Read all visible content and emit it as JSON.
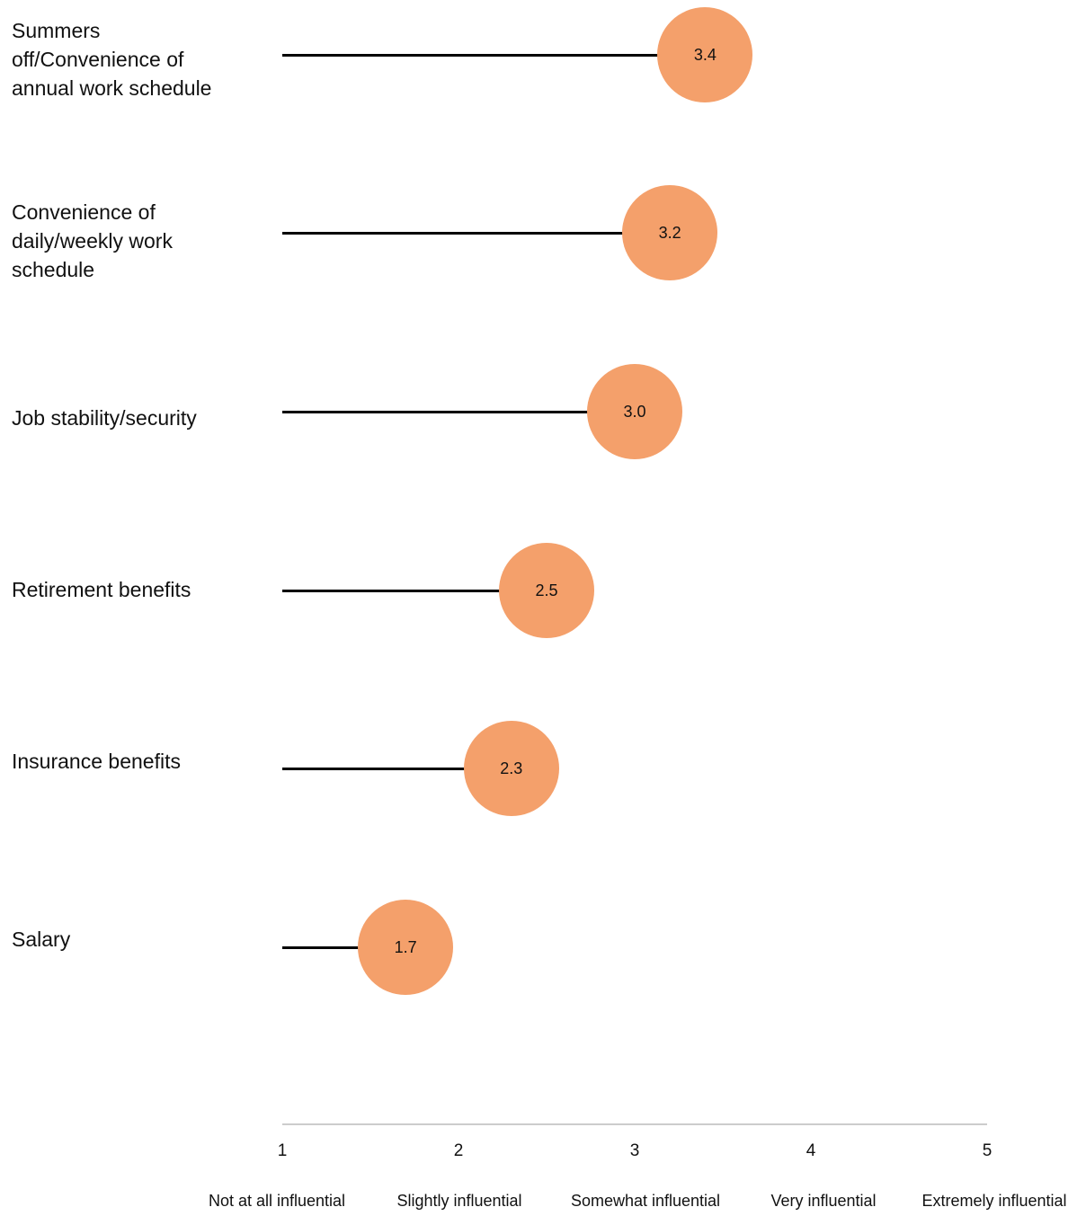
{
  "chart_data": {
    "type": "lollipop",
    "orientation": "horizontal",
    "categories": [
      "Summers off/Convenience of annual work schedule",
      "Convenience of daily/weekly work schedule",
      "Job stability/security",
      "Retirement benefits",
      "Insurance benefits",
      "Salary"
    ],
    "values": [
      3.4,
      3.2,
      3.0,
      2.5,
      2.3,
      1.7
    ],
    "value_labels": [
      "3.4",
      "3.2",
      "3.0",
      "2.5",
      "2.3",
      "1.7"
    ],
    "xlim": [
      1,
      5
    ],
    "ticks": [
      "1",
      "2",
      "3",
      "4",
      "5"
    ],
    "scale_labels": [
      "Not at all influential",
      "Slightly influential",
      "Somewhat influential",
      "Very influential",
      "Extremely influential"
    ],
    "colors": {
      "dot": "#f4a06b",
      "stem": "#000000",
      "axis": "#cccccc"
    },
    "grid": false
  }
}
